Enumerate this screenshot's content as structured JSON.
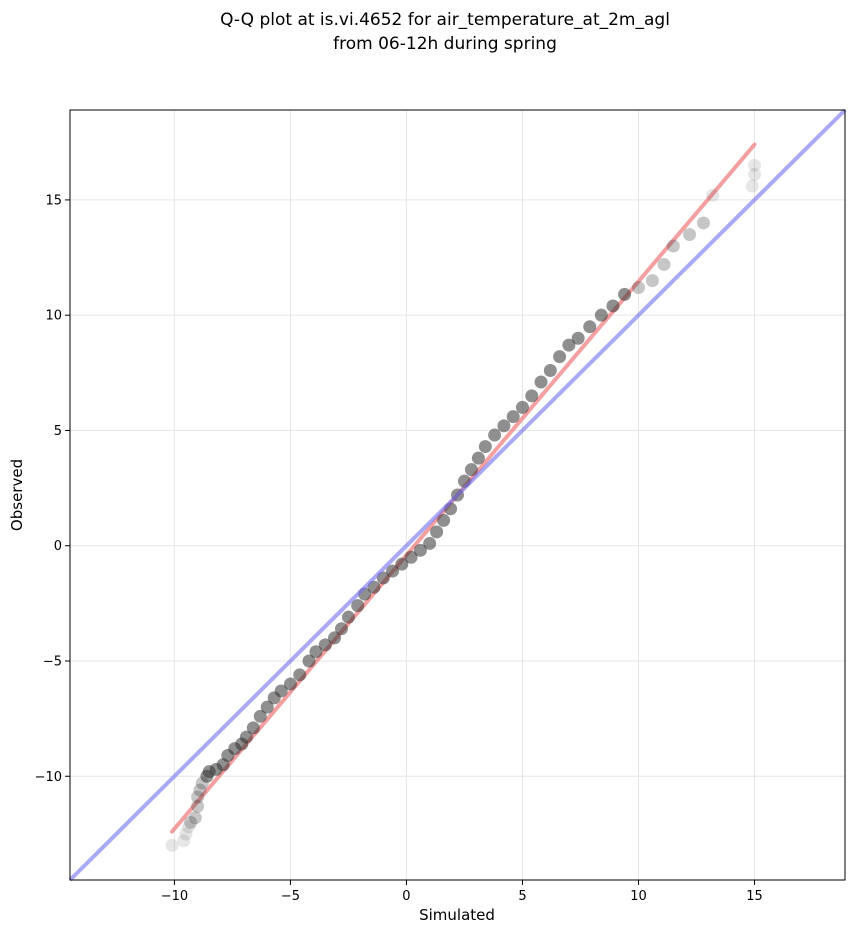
{
  "chart_data": {
    "type": "scatter",
    "title_lines": [
      "Q-Q plot at is.vi.4652 for air_temperature_at_2m_agl",
      "from 06-12h during spring"
    ],
    "xlabel": "Simulated",
    "ylabel": "Observed",
    "xlim": [
      -14.5,
      18.9
    ],
    "ylim": [
      -14.5,
      18.9
    ],
    "xticks": [
      -10,
      -5,
      0,
      5,
      10,
      15
    ],
    "yticks": [
      -10,
      -5,
      0,
      5,
      10,
      15
    ],
    "xtick_labels": [
      "−10",
      "−5",
      "0",
      "5",
      "10",
      "15"
    ],
    "ytick_labels": [
      "−10",
      "−5",
      "0",
      "5",
      "10",
      "15"
    ],
    "grid": true,
    "colors": {
      "points": "#333333",
      "identity_line": "#6f6ff0",
      "fit_line": "#f07878"
    },
    "series": [
      {
        "kind": "quantile_points",
        "points": [
          [
            -10.1,
            -13.0
          ],
          [
            -9.6,
            -12.8
          ],
          [
            -9.5,
            -12.5
          ],
          [
            -9.4,
            -12.2
          ],
          [
            -9.3,
            -12.0
          ],
          [
            -9.1,
            -11.8
          ],
          [
            -9.0,
            -11.3
          ],
          [
            -9.0,
            -10.9
          ],
          [
            -8.9,
            -10.6
          ],
          [
            -8.8,
            -10.3
          ],
          [
            -8.6,
            -10.0
          ],
          [
            -8.5,
            -9.8
          ],
          [
            -8.2,
            -9.7
          ],
          [
            -7.9,
            -9.5
          ],
          [
            -7.7,
            -9.1
          ],
          [
            -7.4,
            -8.8
          ],
          [
            -7.1,
            -8.6
          ],
          [
            -6.9,
            -8.3
          ],
          [
            -6.6,
            -7.9
          ],
          [
            -6.3,
            -7.4
          ],
          [
            -6.0,
            -7.0
          ],
          [
            -5.7,
            -6.6
          ],
          [
            -5.4,
            -6.3
          ],
          [
            -5.0,
            -6.0
          ],
          [
            -4.6,
            -5.6
          ],
          [
            -4.2,
            -5.0
          ],
          [
            -3.9,
            -4.6
          ],
          [
            -3.5,
            -4.3
          ],
          [
            -3.1,
            -4.0
          ],
          [
            -2.8,
            -3.6
          ],
          [
            -2.5,
            -3.1
          ],
          [
            -2.1,
            -2.6
          ],
          [
            -1.8,
            -2.1
          ],
          [
            -1.4,
            -1.8
          ],
          [
            -1.0,
            -1.4
          ],
          [
            -0.6,
            -1.1
          ],
          [
            -0.2,
            -0.8
          ],
          [
            0.2,
            -0.5
          ],
          [
            0.6,
            -0.2
          ],
          [
            1.0,
            0.1
          ],
          [
            1.3,
            0.6
          ],
          [
            1.6,
            1.1
          ],
          [
            1.9,
            1.6
          ],
          [
            2.2,
            2.2
          ],
          [
            2.5,
            2.8
          ],
          [
            2.8,
            3.3
          ],
          [
            3.1,
            3.8
          ],
          [
            3.4,
            4.3
          ],
          [
            3.8,
            4.8
          ],
          [
            4.2,
            5.2
          ],
          [
            4.6,
            5.6
          ],
          [
            5.0,
            6.0
          ],
          [
            5.4,
            6.5
          ],
          [
            5.8,
            7.1
          ],
          [
            6.2,
            7.6
          ],
          [
            6.6,
            8.2
          ],
          [
            7.0,
            8.7
          ],
          [
            7.4,
            9.0
          ],
          [
            7.9,
            9.5
          ],
          [
            8.4,
            10.0
          ],
          [
            8.9,
            10.4
          ],
          [
            9.4,
            10.9
          ],
          [
            10.0,
            11.2
          ],
          [
            10.6,
            11.5
          ],
          [
            11.1,
            12.2
          ],
          [
            11.5,
            13.0
          ],
          [
            12.2,
            13.5
          ],
          [
            12.8,
            14.0
          ],
          [
            13.2,
            15.2
          ],
          [
            14.9,
            15.6
          ],
          [
            15.0,
            16.1
          ],
          [
            15.0,
            16.5
          ]
        ]
      },
      {
        "kind": "identity_line",
        "from": [
          -14.5,
          -14.5
        ],
        "to": [
          18.9,
          18.9
        ]
      },
      {
        "kind": "fit_line",
        "from": [
          -10.1,
          -12.4
        ],
        "to": [
          15.0,
          17.4
        ]
      }
    ]
  }
}
